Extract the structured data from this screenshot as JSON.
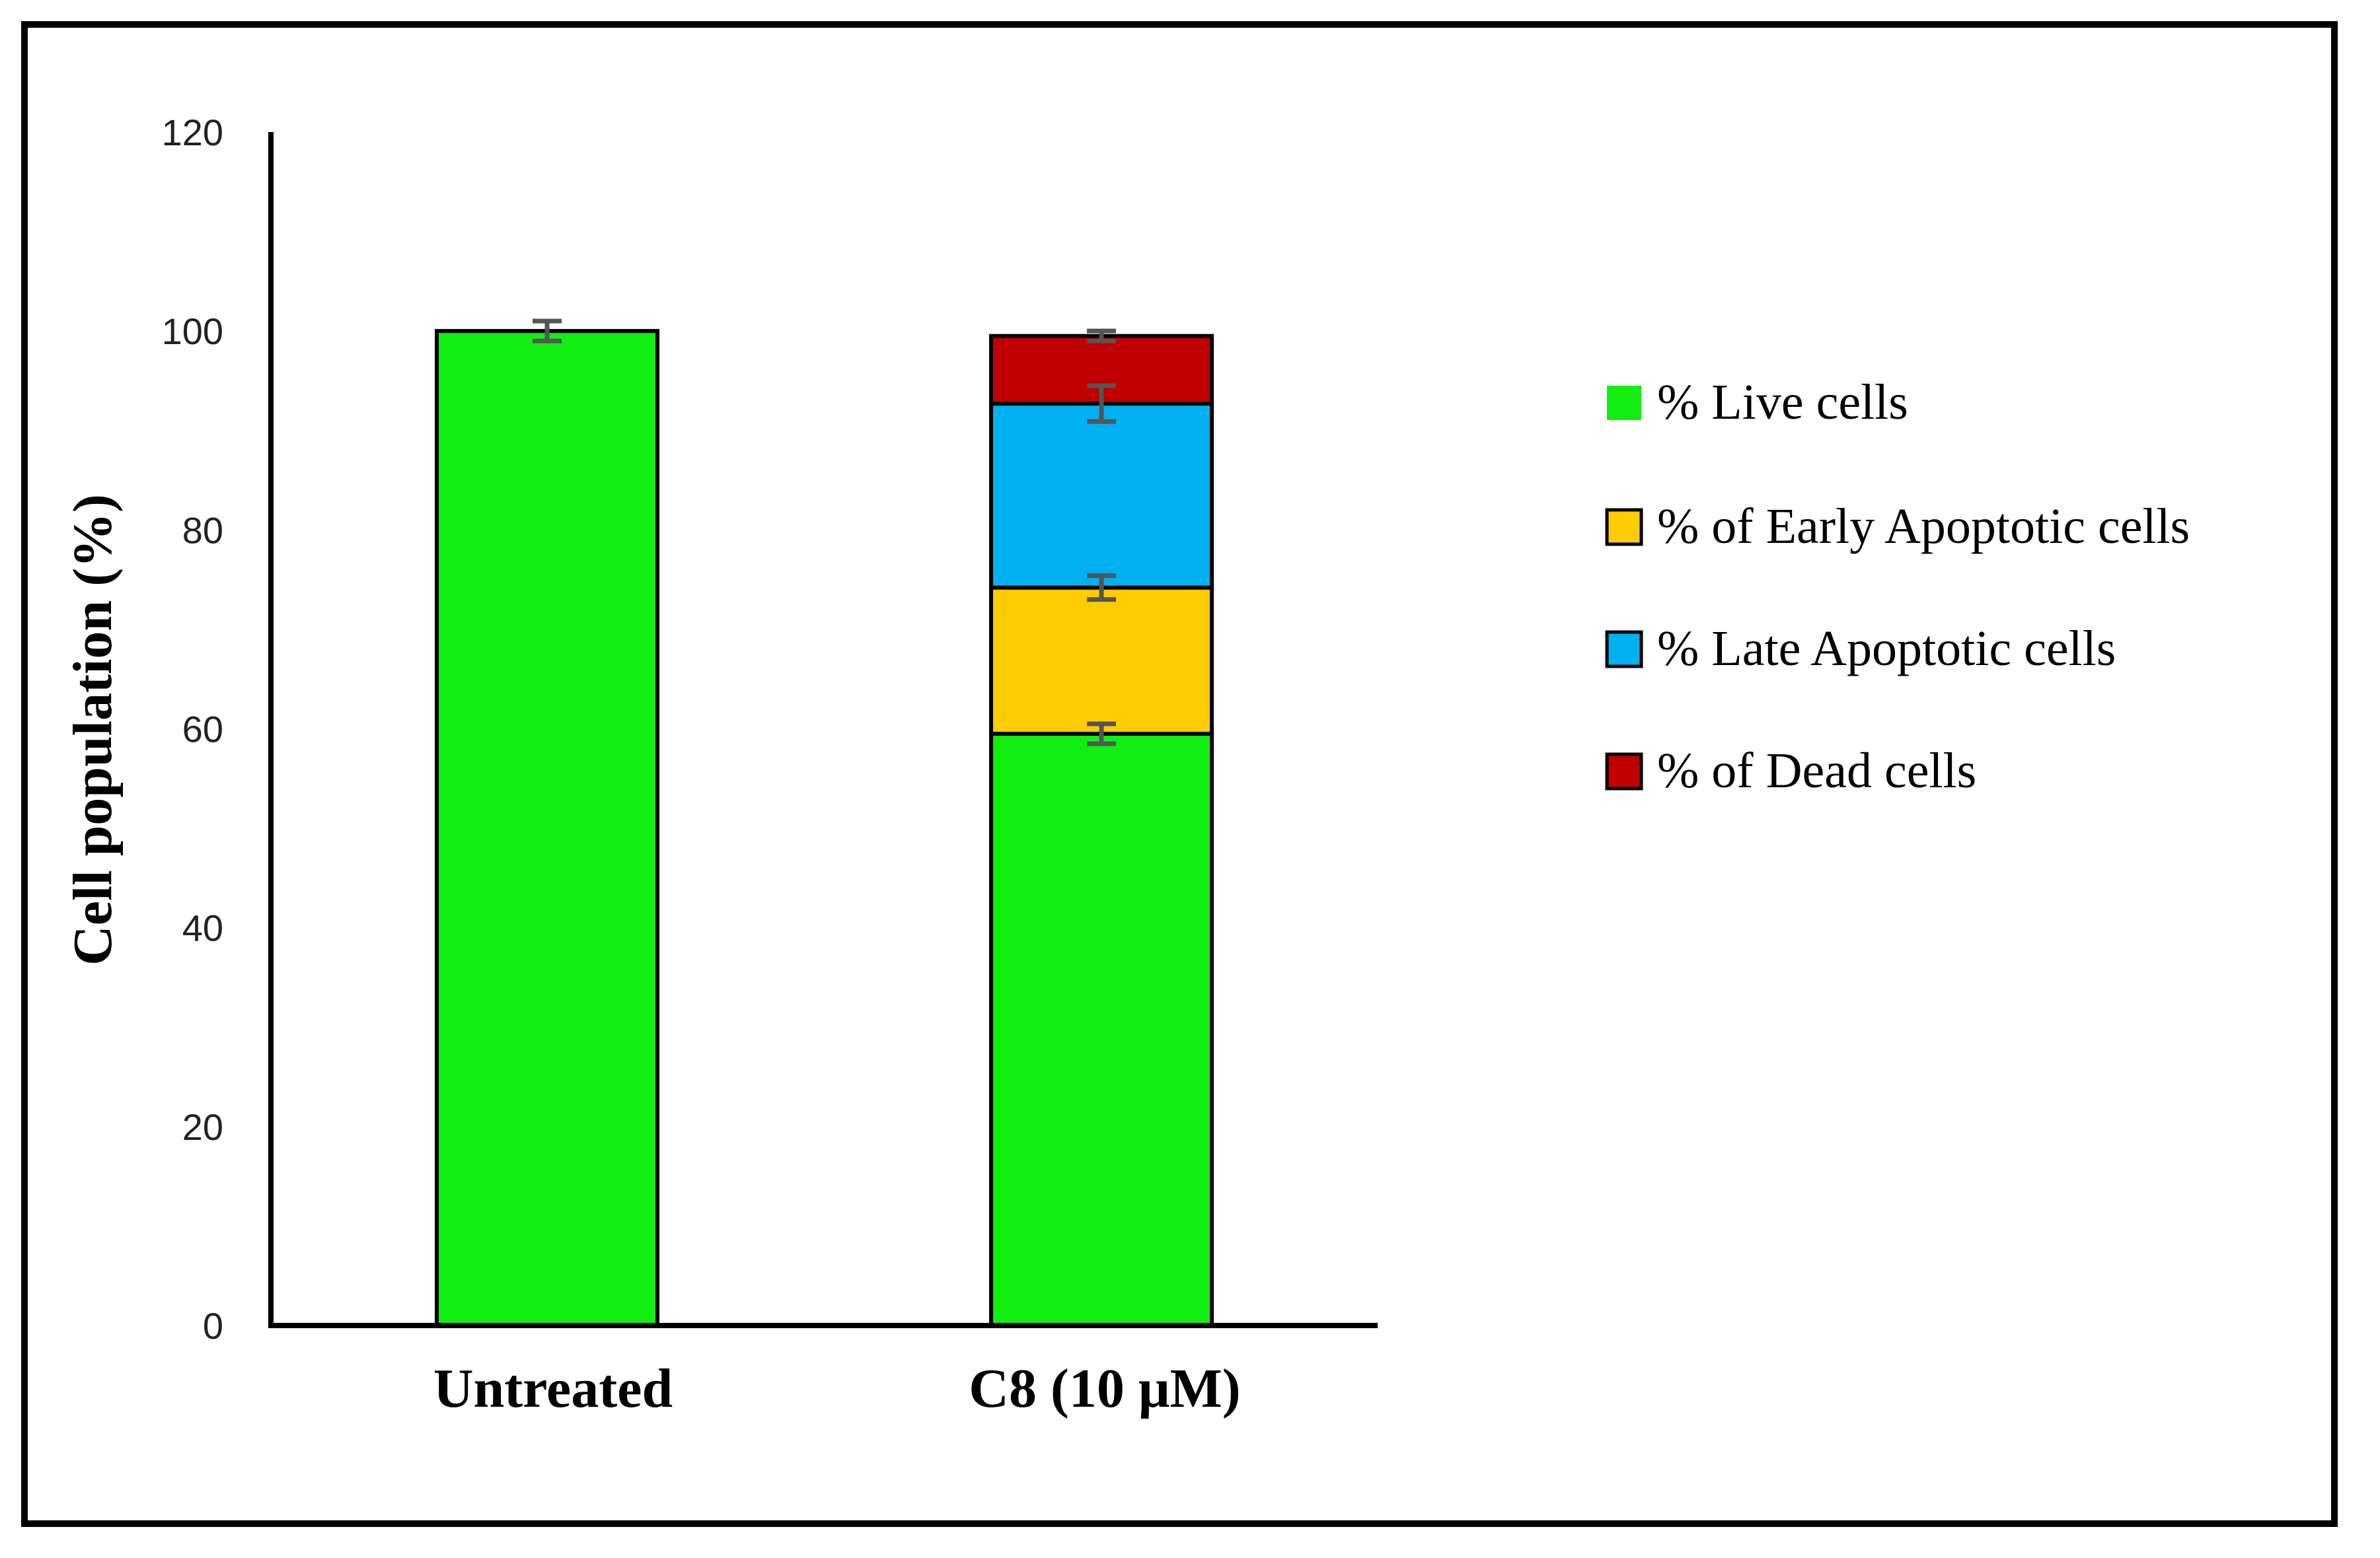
{
  "chart_data": {
    "type": "bar",
    "stacked": true,
    "title": "",
    "xlabel": "",
    "ylabel": "Cell population (%)",
    "ylim": [
      0,
      120
    ],
    "yticks": [
      0,
      20,
      40,
      60,
      80,
      100,
      120
    ],
    "yticks_labels": [
      "0",
      "20",
      "40",
      "60",
      "80",
      "100",
      "120"
    ],
    "categories": [
      "Untreated",
      "C8 (10 μM)"
    ],
    "series": [
      {
        "name": "% Live cells",
        "color": "#12ee12",
        "values": [
          100,
          59.5
        ],
        "errors": [
          1.0,
          1.0
        ]
      },
      {
        "name": "% of Early Apoptotic cells",
        "color": "#ffcc00",
        "values": [
          0,
          14.7
        ],
        "errors": [
          0,
          1.2
        ]
      },
      {
        "name": "% Late Apoptotic cells",
        "color": "#00b0f0",
        "values": [
          0,
          18.5
        ],
        "errors": [
          0,
          1.8
        ]
      },
      {
        "name": "% of Dead cells",
        "color": "#c00000",
        "values": [
          0,
          6.8
        ],
        "errors": [
          0,
          0.5
        ]
      }
    ],
    "legend_position": "right",
    "grid": false
  }
}
